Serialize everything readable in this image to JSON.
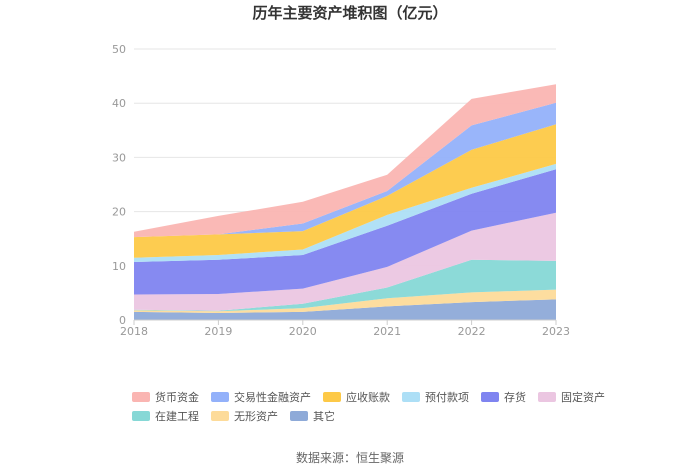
{
  "chart_data": {
    "type": "area",
    "stacked": true,
    "title": "历年主要资产堆积图（亿元）",
    "categories": [
      "2018",
      "2019",
      "2020",
      "2021",
      "2022",
      "2023"
    ],
    "ylim": [
      0,
      50
    ],
    "yticks": [
      0,
      10,
      20,
      30,
      40,
      50
    ],
    "grid": true,
    "legend_position": "bottom",
    "series": [
      {
        "name": "其它",
        "color": "#8eaad8",
        "values": [
          1.5,
          1.3,
          1.5,
          2.5,
          3.3,
          3.8
        ]
      },
      {
        "name": "无形资产",
        "color": "#fddb9a",
        "values": [
          0.3,
          0.3,
          0.7,
          1.5,
          1.8,
          1.8
        ]
      },
      {
        "name": "在建工程",
        "color": "#86d8d6",
        "values": [
          0.1,
          0.1,
          0.8,
          2.0,
          6.0,
          5.3
        ]
      },
      {
        "name": "固定资产",
        "color": "#ebc6e1",
        "values": [
          2.8,
          3.1,
          2.8,
          3.8,
          5.4,
          8.9
        ]
      },
      {
        "name": "存货",
        "color": "#7f84f0",
        "values": [
          6.0,
          6.3,
          6.2,
          7.6,
          6.8,
          8.0
        ]
      },
      {
        "name": "预付款项",
        "color": "#addff6",
        "values": [
          0.8,
          0.9,
          1.0,
          2.0,
          1.1,
          1.0
        ]
      },
      {
        "name": "应收账款",
        "color": "#fdc947",
        "values": [
          3.8,
          3.8,
          3.4,
          3.5,
          7.0,
          7.3
        ]
      },
      {
        "name": "交易性金融资产",
        "color": "#93b1fa",
        "values": [
          0.0,
          0.0,
          1.4,
          0.9,
          4.5,
          4.0
        ]
      },
      {
        "name": "货币资金",
        "color": "#fab5b2",
        "values": [
          1.0,
          3.4,
          4.0,
          3.0,
          4.9,
          3.4
        ]
      }
    ],
    "legend_order": [
      "货币资金",
      "交易性金融资产",
      "应收账款",
      "预付款项",
      "存货",
      "固定资产",
      "在建工程",
      "无形资产",
      "其它"
    ]
  },
  "source": "数据来源：恒生聚源"
}
